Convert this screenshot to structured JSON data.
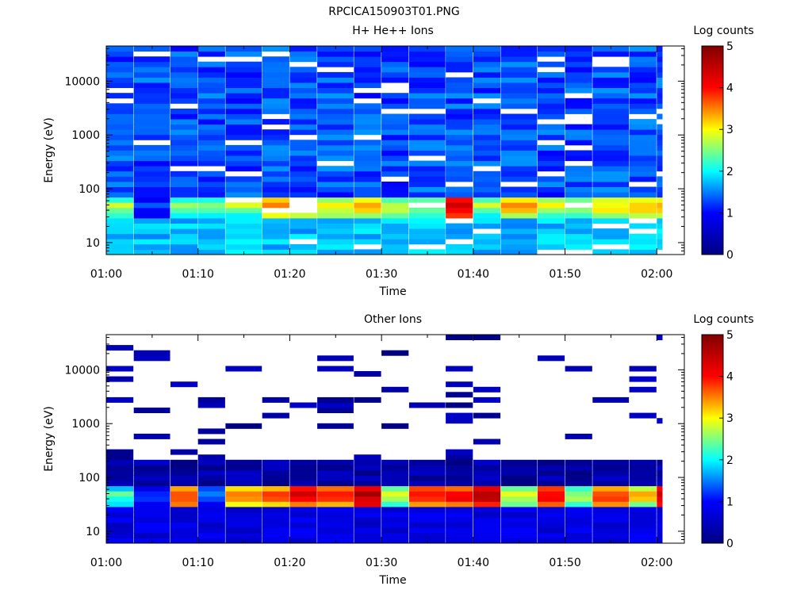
{
  "figure_title": "RPCICA150903T01.PNG",
  "colors": {
    "background": "#ffffff",
    "axis": "#000000",
    "colormap": [
      "#000080",
      "#0000ff",
      "#00ffff",
      "#ffff00",
      "#ff0000",
      "#800000"
    ]
  },
  "chart_data": [
    {
      "type": "heatmap",
      "title": "H+ He++ Ions",
      "xlabel": "Time",
      "ylabel": "Energy (eV)",
      "ylog": true,
      "ylim": [
        6,
        45000
      ],
      "xlim": [
        "01:00",
        "02:03"
      ],
      "xticks": [
        "01:00",
        "01:10",
        "01:20",
        "01:30",
        "01:40",
        "01:50",
        "02:00"
      ],
      "yticks": [
        {
          "value": 10,
          "label": "10"
        },
        {
          "value": 100,
          "label": "100"
        },
        {
          "value": 1000,
          "label": "1000"
        },
        {
          "value": 10000,
          "label": "10000"
        }
      ],
      "time_columns": [
        "01:00",
        "01:03",
        "01:07",
        "01:10",
        "01:13",
        "01:17",
        "01:20",
        "01:23",
        "01:27",
        "01:30",
        "01:33",
        "01:37",
        "01:40",
        "01:43",
        "01:47",
        "01:50",
        "01:53",
        "01:57",
        "02:00"
      ],
      "low_energy_band_max_log_counts": [
        2.6,
        1.2,
        2.5,
        2.3,
        2.6,
        3.4,
        3.2,
        2.9,
        3.1,
        2.8,
        2.6,
        4.1,
        2.6,
        3.3,
        2.8,
        2.6,
        3.0,
        3.1,
        3.2
      ],
      "background_log_counts": 1.0,
      "colorbar": {
        "label": "Log counts",
        "min": 0,
        "max": 5,
        "ticks": [
          "0",
          "1",
          "2",
          "3",
          "4",
          "5"
        ]
      }
    },
    {
      "type": "heatmap",
      "title": "Other Ions",
      "xlabel": "Time",
      "ylabel": "Energy (eV)",
      "ylog": true,
      "ylim": [
        6,
        45000
      ],
      "xlim": [
        "01:00",
        "02:03"
      ],
      "xticks": [
        "01:00",
        "01:10",
        "01:20",
        "01:30",
        "01:40",
        "01:50",
        "02:00"
      ],
      "yticks": [
        {
          "value": 10,
          "label": "10"
        },
        {
          "value": 100,
          "label": "100"
        },
        {
          "value": 1000,
          "label": "1000"
        },
        {
          "value": 10000,
          "label": "10000"
        }
      ],
      "time_columns": [
        "01:00",
        "01:03",
        "01:07",
        "01:10",
        "01:13",
        "01:17",
        "01:20",
        "01:23",
        "01:27",
        "01:30",
        "01:33",
        "01:37",
        "01:40",
        "01:43",
        "01:47",
        "01:50",
        "01:53",
        "01:57",
        "02:00"
      ],
      "low_energy_band_max_log_counts": [
        2.2,
        1.2,
        3.8,
        1.5,
        3.5,
        3.6,
        4.1,
        3.8,
        4.5,
        2.6,
        4.0,
        4.0,
        4.4,
        2.7,
        3.9,
        2.6,
        3.7,
        3.1,
        4.4
      ],
      "background_log_counts": 0.0,
      "colorbar": {
        "label": "Log counts",
        "min": 0,
        "max": 5,
        "ticks": [
          "0",
          "1",
          "2",
          "3",
          "4",
          "5"
        ]
      }
    }
  ]
}
